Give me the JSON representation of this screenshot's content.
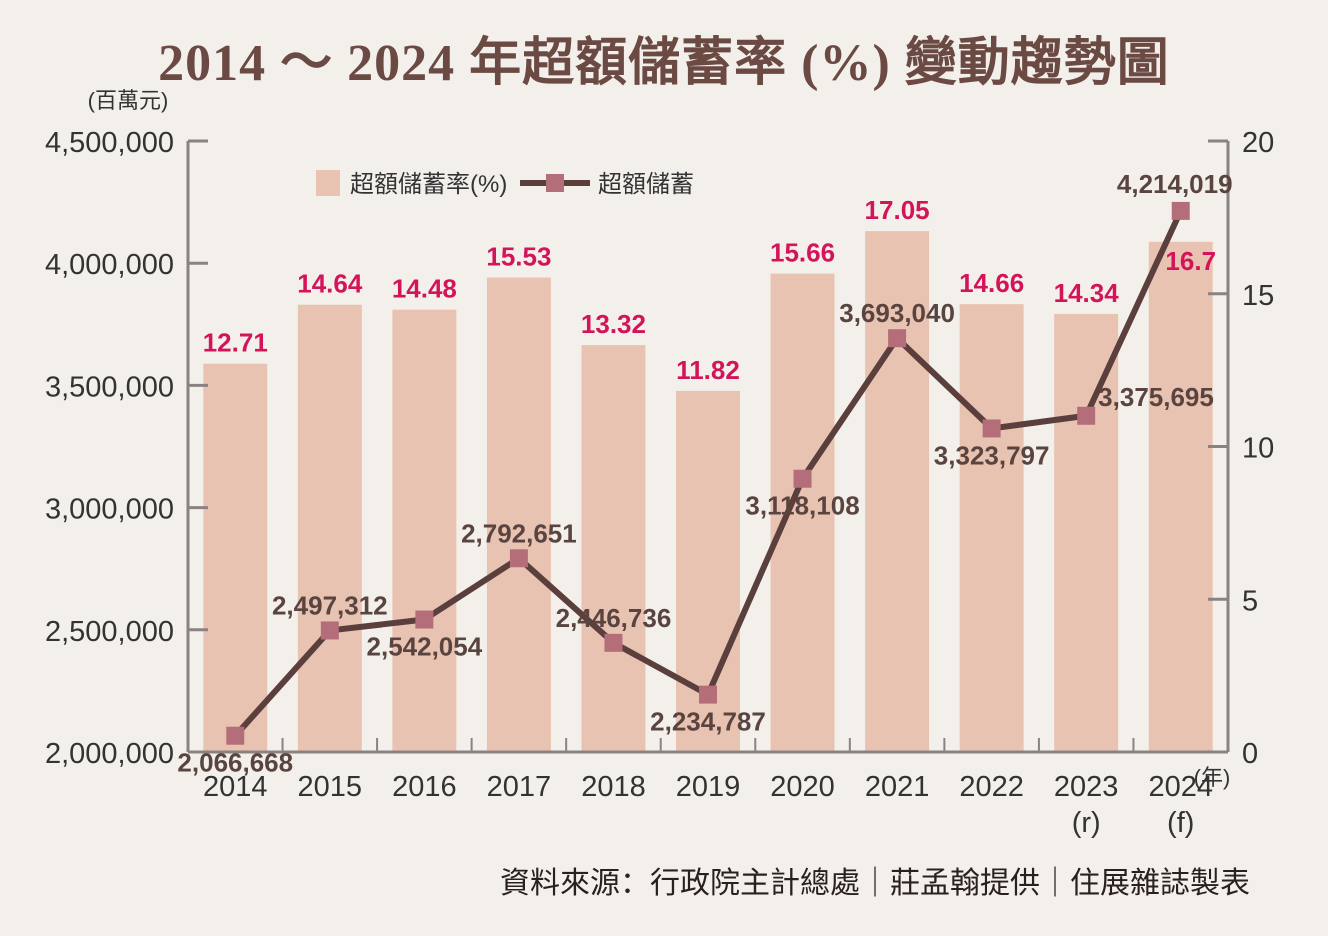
{
  "title": "2014 ～ 2024 年超額儲蓄率 (%) 變動趨勢圖",
  "source": "資料來源：行政院主計總處｜莊孟翰提供｜住展雜誌製表",
  "colors": {
    "bar": "#e9c3b2",
    "line": "#5b3f3c",
    "marker": "#b36e7a",
    "bar_label": "#d4145a",
    "point_label": "#5a4440",
    "axis": "#8a8281"
  },
  "chart_data": {
    "type": "bar+line",
    "title": "2014 ～ 2024 年超額儲蓄率 (%) 變動趨勢圖",
    "categories": [
      "2014",
      "2015",
      "2016",
      "2017",
      "2018",
      "2019",
      "2020",
      "2021",
      "2022",
      "2023",
      "2024"
    ],
    "category_sublabels": [
      "",
      "",
      "",
      "",
      "",
      "",
      "",
      "",
      "",
      "(r)",
      "(f)"
    ],
    "x_unit": "(年)",
    "left_axis": {
      "unit": "(百萬元)",
      "ylim": [
        2000000,
        4500000
      ],
      "ticks": [
        2000000,
        2500000,
        3000000,
        3500000,
        4000000,
        4500000
      ],
      "tick_labels": [
        "2,000,000",
        "2,500,000",
        "3,000,000",
        "3,500,000",
        "4,000,000",
        "4,500,000"
      ]
    },
    "right_axis": {
      "ylim": [
        0,
        20
      ],
      "ticks": [
        0,
        5,
        10,
        15,
        20
      ],
      "tick_labels": [
        "0",
        "5",
        "10",
        "15",
        "20"
      ]
    },
    "series": [
      {
        "name": "超額儲蓄率(%)",
        "type": "bar",
        "axis": "right",
        "values": [
          12.71,
          14.64,
          14.48,
          15.53,
          13.32,
          11.82,
          15.66,
          17.05,
          14.66,
          14.34,
          16.7
        ],
        "labels": [
          "12.71",
          "14.64",
          "14.48",
          "15.53",
          "13.32",
          "11.82",
          "15.66",
          "17.05",
          "14.66",
          "14.34",
          "16.7"
        ]
      },
      {
        "name": "超額儲蓄",
        "type": "line",
        "axis": "left",
        "values": [
          2066668,
          2497312,
          2542054,
          2792651,
          2446736,
          2234787,
          3118108,
          3693040,
          3323797,
          3375695,
          4214019
        ],
        "labels": [
          "2,066,668",
          "2,497,312",
          "2,542,054",
          "2,792,651",
          "2,446,736",
          "2,234,787",
          "3,118,108",
          "3,693,040",
          "3,323,797",
          "3,375,695",
          "4,214,019"
        ],
        "label_position": [
          "below",
          "above",
          "below",
          "above",
          "above",
          "below",
          "below",
          "above",
          "below",
          "above",
          "above"
        ]
      }
    ],
    "legend": {
      "placement": "top"
    }
  }
}
